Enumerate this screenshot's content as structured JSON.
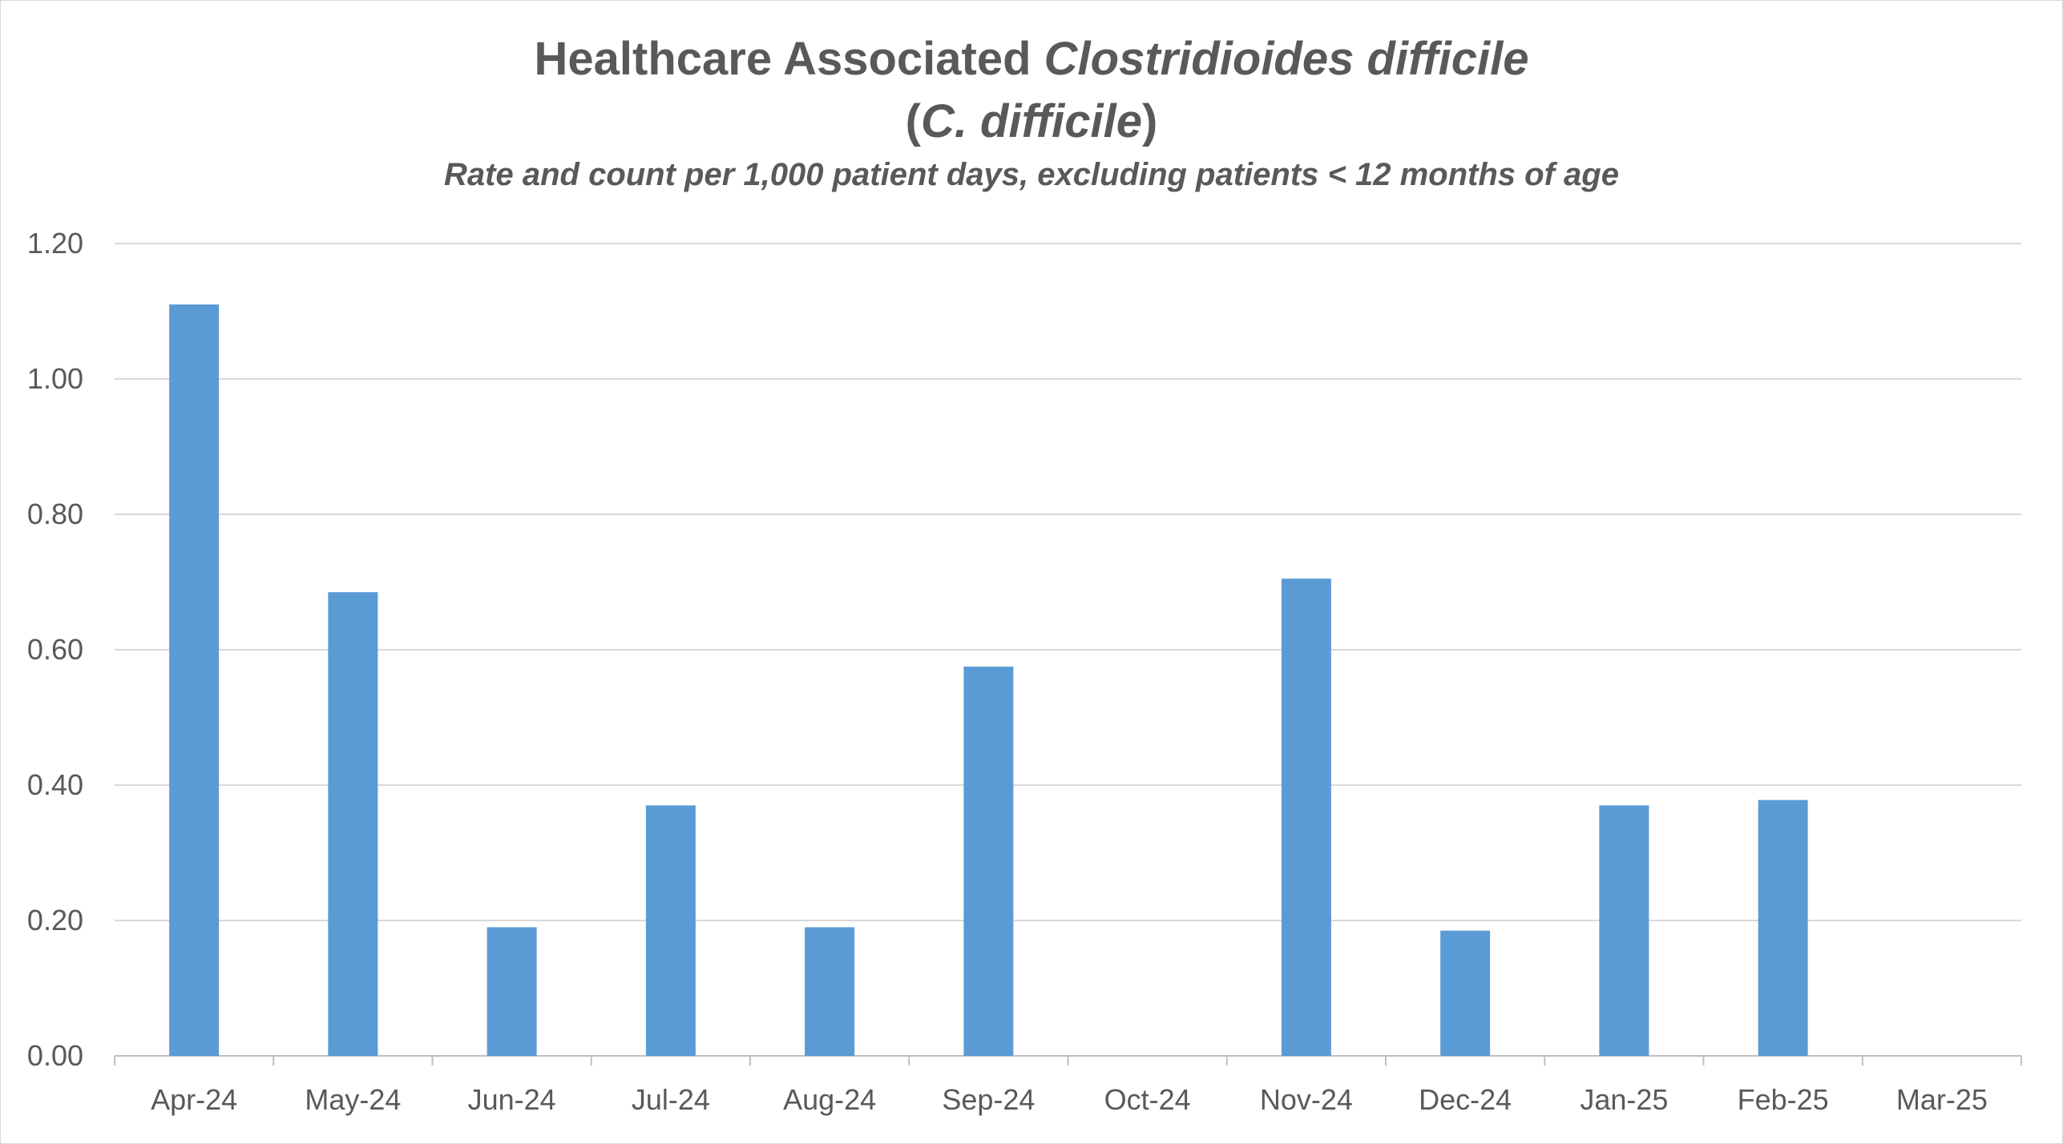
{
  "chart_data": {
    "type": "bar",
    "title_main": "Healthcare Associated ",
    "title_italic": "Clostridioides difficile",
    "title_line2_open": "(",
    "title_line2_italic": "C. difficile",
    "title_line2_close": ")",
    "subtitle": "Rate and count per 1,000 patient days, excluding patients < 12 months of age",
    "xlabel": "",
    "ylabel": "",
    "ylim": [
      0,
      1.2
    ],
    "yticks": [
      "0.00",
      "0.20",
      "0.40",
      "0.60",
      "0.80",
      "1.00",
      "1.20"
    ],
    "ytick_values": [
      0,
      0.2,
      0.4,
      0.6,
      0.8,
      1.0,
      1.2
    ],
    "grid": true,
    "categories": [
      "Apr-24",
      "May-24",
      "Jun-24",
      "Jul-24",
      "Aug-24",
      "Sep-24",
      "Oct-24",
      "Nov-24",
      "Dec-24",
      "Jan-25",
      "Feb-25",
      "Mar-25"
    ],
    "values": [
      1.11,
      0.685,
      0.19,
      0.37,
      0.19,
      0.575,
      0,
      0.705,
      0.185,
      0.37,
      0.378,
      0
    ],
    "bar_color": "#5b9bd5",
    "grid_color": "#d9d9d9",
    "axis_color": "#bfbfbf",
    "text_color": "#595959"
  }
}
